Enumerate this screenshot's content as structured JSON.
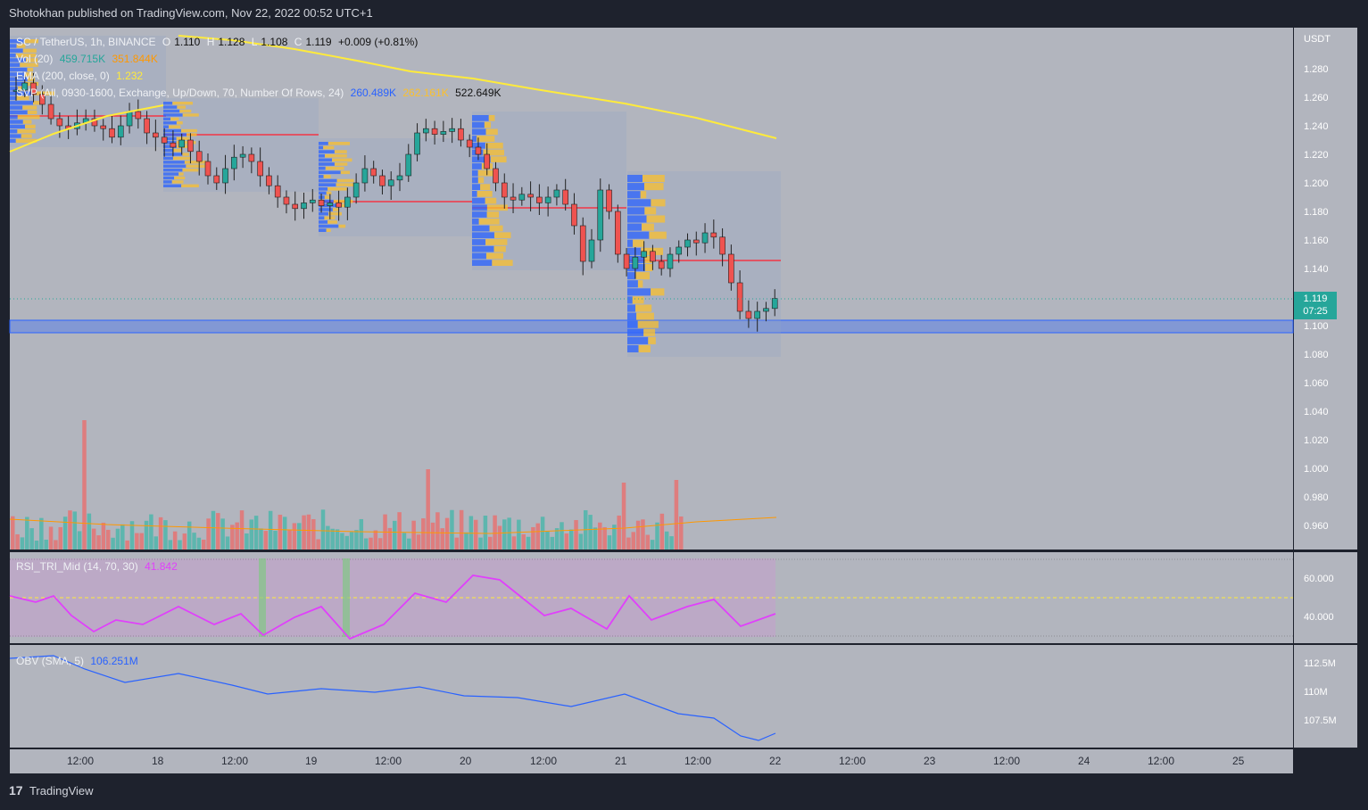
{
  "header": {
    "text": "Shotokhan published on TradingView.com, Nov 22, 2022 00:52 UTC+1"
  },
  "legend": {
    "symbol": "SC / TetherUS, 1h, BINANCE",
    "o_label": "O",
    "o": "1.110",
    "h_label": "H",
    "h": "1.128",
    "l_label": "L",
    "l": "1.108",
    "c_label": "C",
    "c": "1.119",
    "change": "+0.009 (+0.81%)",
    "vol_label": "Vol (20)",
    "vol": "459.715K",
    "vol_ma": "351.844K",
    "ema_label": "EMA (200, close, 0)",
    "ema": "1.232",
    "svp_label": "SVP (All, 0930-1600, Exchange, Up/Down, 70, Number Of Rows, 24)",
    "svp_up": "260.489K",
    "svp_down": "262.161K",
    "svp_total": "522.649K"
  },
  "price_axis": {
    "unit": "USDT",
    "ticks": [
      "1.280",
      "1.260",
      "1.240",
      "1.220",
      "1.200",
      "1.180",
      "1.160",
      "1.140",
      "1.100",
      "1.080",
      "1.060",
      "1.040",
      "1.020",
      "1.000",
      "0.980",
      "0.960"
    ],
    "last_price": "1.119",
    "countdown": "07:25"
  },
  "rsi": {
    "label": "RSI_TRI_Mid (14, 70, 30)",
    "value": "41.842",
    "ticks": [
      "60.000",
      "40.000"
    ]
  },
  "obv": {
    "label": "OBV (SMA, 5)",
    "value": "106.251M",
    "ticks": [
      "112.5M",
      "110M",
      "107.5M"
    ]
  },
  "time_axis": [
    "12:00",
    "18",
    "12:00",
    "19",
    "12:00",
    "20",
    "12:00",
    "21",
    "12:00",
    "22",
    "12:00",
    "23",
    "12:00",
    "24",
    "12:00",
    "25"
  ],
  "footer": {
    "brand": "TradingView",
    "logo": "17"
  },
  "colors": {
    "up": "#26a69a",
    "down": "#ef5350",
    "ema": "#ffeb3b",
    "rsi": "#e040fb",
    "obv": "#2962ff",
    "poc": "#f23645",
    "zone": "#2962ff",
    "pane": "#b2b5be"
  }
}
